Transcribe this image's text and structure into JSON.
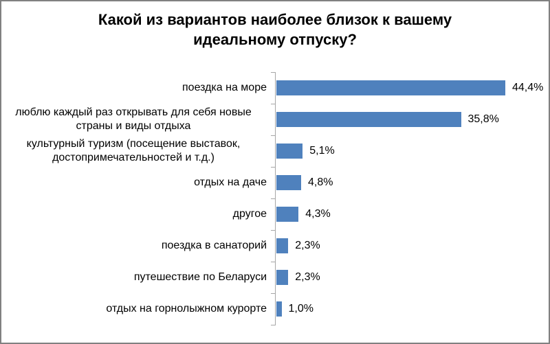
{
  "title": "Какой из вариантов наиболее близок к вашему идеальному отпуску?",
  "colors": {
    "bar": "#4f81bd",
    "axis": "#a6a6a6",
    "frame_border": "#808080",
    "background": "#ffffff",
    "text": "#000000"
  },
  "chart_data": {
    "type": "bar",
    "orientation": "horizontal",
    "title": "Какой из вариантов наиболее близок к вашему идеальному отпуску?",
    "categories": [
      "поездка на море",
      "люблю каждый раз открывать для себя новые страны и виды отдыха",
      "культурный туризм (посещение выставок, достопримечательностей и т.д.)",
      "отдых на даче",
      "другое",
      "поездка в санаторий",
      "путешествие по Беларуси",
      "отдых на горнолыжном курорте"
    ],
    "values": [
      44.4,
      35.8,
      5.1,
      4.8,
      4.3,
      2.3,
      2.3,
      1.0
    ],
    "value_labels": [
      "44,4%",
      "35,8%",
      "5,1%",
      "4,8%",
      "4,3%",
      "2,3%",
      "2,3%",
      "1,0%"
    ],
    "xlabel": "",
    "ylabel": "",
    "xlim": [
      0,
      50
    ],
    "grid": false,
    "legend": false,
    "data_labels": "outside-end"
  }
}
